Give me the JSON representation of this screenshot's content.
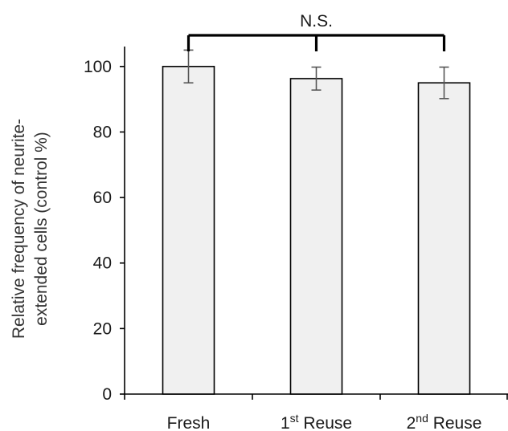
{
  "chart_data": {
    "type": "bar",
    "categories": [
      {
        "main": "Fresh",
        "sup": "",
        "rest": ""
      },
      {
        "main": "1",
        "sup": "st",
        "rest": " Reuse"
      },
      {
        "main": "2",
        "sup": "nd",
        "rest": " Reuse"
      }
    ],
    "values": [
      100,
      96.3,
      95
    ],
    "errors": [
      5,
      3.5,
      4.8
    ],
    "ylabel_lines": [
      "Relative frequency of neurite-",
      "extended cells (control %)"
    ],
    "xlabel": "",
    "ylim": [
      0,
      110
    ],
    "yticks": [
      0,
      20,
      40,
      60,
      80,
      100
    ],
    "grid": false,
    "bar_fill": "#f0f0f0",
    "bar_stroke": "#000000",
    "error_color": "#555555",
    "significance": {
      "label": "N.S.",
      "spans": [
        0,
        2
      ],
      "marks": [
        0,
        1,
        2
      ]
    }
  }
}
